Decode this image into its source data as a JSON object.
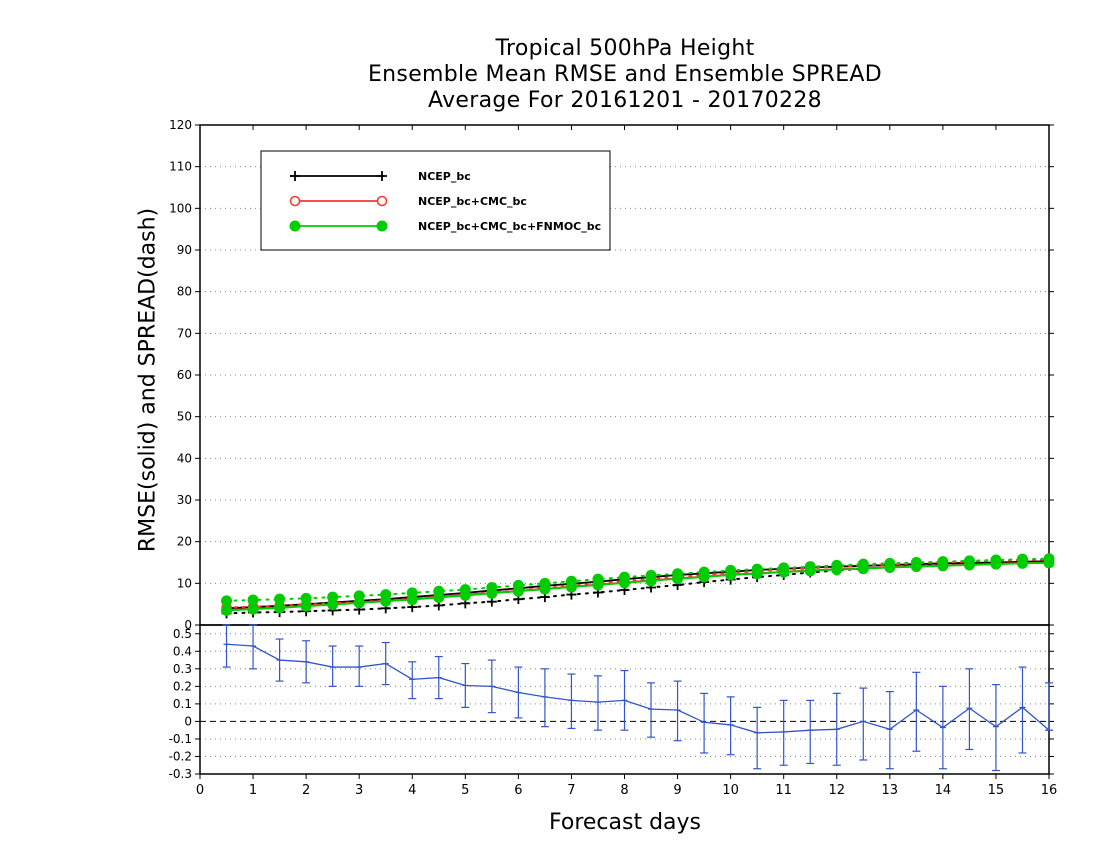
{
  "chart_data": {
    "type": "line",
    "title": [
      "Tropical 500hPa Height",
      "Ensemble Mean RMSE and Ensemble SPREAD",
      "Average For 20161201 - 20170228"
    ],
    "ylabel": "RMSE(solid) and SPREAD(dash)",
    "xlabel": "Forecast days",
    "x": [
      0.5,
      1,
      1.5,
      2,
      2.5,
      3,
      3.5,
      4,
      4.5,
      5,
      5.5,
      6,
      6.5,
      7,
      7.5,
      8,
      8.5,
      9,
      9.5,
      10,
      10.5,
      11,
      11.5,
      12,
      12.5,
      13,
      13.5,
      14,
      14.5,
      15,
      15.5,
      16
    ],
    "xlim": [
      0,
      16
    ],
    "xticks": [
      0,
      1,
      2,
      3,
      4,
      5,
      6,
      7,
      8,
      9,
      10,
      11,
      12,
      13,
      14,
      15,
      16
    ],
    "top_panel": {
      "ylim": [
        0,
        120
      ],
      "yticks": [
        0,
        10,
        20,
        30,
        40,
        50,
        60,
        70,
        80,
        90,
        100,
        110,
        120
      ],
      "grid": true,
      "legend_position": "top-left",
      "series": [
        {
          "name": "NCEP_bc",
          "color": "#000000",
          "marker": "plus",
          "rmse": [
            4.0,
            4.3,
            4.6,
            5.0,
            5.4,
            5.8,
            6.2,
            6.7,
            7.2,
            7.7,
            8.3,
            8.8,
            9.4,
            9.9,
            10.4,
            11.0,
            11.5,
            12.0,
            12.4,
            12.8,
            13.2,
            13.5,
            13.8,
            14.0,
            14.2,
            14.4,
            14.6,
            14.8,
            14.9,
            15.0,
            15.2,
            15.3
          ],
          "spread": [
            2.8,
            3.0,
            3.1,
            3.3,
            3.5,
            3.7,
            4.0,
            4.3,
            4.7,
            5.2,
            5.6,
            6.2,
            6.7,
            7.3,
            7.8,
            8.4,
            9.0,
            9.6,
            10.3,
            10.9,
            11.5,
            12.0,
            12.6,
            13.1,
            13.5,
            13.9,
            14.2,
            14.5,
            14.7,
            14.8,
            15.0,
            15.2
          ]
        },
        {
          "name": "NCEP_bc+CMC_bc",
          "color": "#ff3333",
          "marker": "open-circle",
          "rmse": [
            3.6,
            3.9,
            4.2,
            4.6,
            5.0,
            5.4,
            5.8,
            6.2,
            6.7,
            7.2,
            7.7,
            8.2,
            8.7,
            9.2,
            9.7,
            10.2,
            10.7,
            11.2,
            11.6,
            12.1,
            12.4,
            12.8,
            13.1,
            13.4,
            13.6,
            13.9,
            14.1,
            14.3,
            14.5,
            14.7,
            14.9,
            15.0
          ],
          "spread": [
            4.2,
            4.4,
            4.6,
            4.9,
            5.2,
            5.5,
            5.9,
            6.3,
            6.8,
            7.3,
            7.8,
            8.3,
            8.9,
            9.4,
            10.0,
            10.5,
            11.0,
            11.5,
            12.0,
            12.5,
            12.9,
            13.3,
            13.6,
            14.0,
            14.3,
            14.5,
            14.8,
            15.0,
            15.2,
            15.4,
            15.6,
            15.7
          ]
        },
        {
          "name": "NCEP_bc+CMC_bc+FNMOC_bc",
          "color": "#00cc00",
          "marker": "filled-circle",
          "rmse": [
            3.5,
            3.8,
            4.1,
            4.5,
            4.9,
            5.3,
            5.7,
            6.1,
            6.6,
            7.1,
            7.6,
            8.1,
            8.6,
            9.1,
            9.6,
            10.1,
            10.6,
            11.1,
            11.5,
            12.0,
            12.3,
            12.7,
            13.0,
            13.3,
            13.5,
            13.8,
            14.0,
            14.2,
            14.4,
            14.6,
            14.8,
            14.9
          ],
          "spread": [
            5.8,
            6.0,
            6.2,
            6.4,
            6.7,
            7.0,
            7.3,
            7.7,
            8.1,
            8.5,
            9.0,
            9.5,
            10.0,
            10.5,
            11.0,
            11.5,
            11.9,
            12.3,
            12.7,
            13.1,
            13.4,
            13.7,
            14.0,
            14.3,
            14.6,
            14.8,
            15.0,
            15.2,
            15.4,
            15.6,
            15.8,
            15.9
          ]
        }
      ]
    },
    "bottom_panel": {
      "ylim": [
        -0.3,
        0.55
      ],
      "yticks": [
        -0.3,
        -0.2,
        -0.1,
        0,
        0.1,
        0.2,
        0.3,
        0.4,
        0.5
      ],
      "ytick_labels": [
        "-0.3",
        "-0.2",
        "-0.1",
        "0",
        "0.1",
        "0.2",
        "0.3",
        "0.4",
        "0.5"
      ],
      "grid": true,
      "zero_line": "dashed",
      "series": [
        {
          "color": "#3355cc",
          "values": [
            0.44,
            0.43,
            0.35,
            0.34,
            0.31,
            0.31,
            0.33,
            0.24,
            0.25,
            0.205,
            0.2,
            0.165,
            0.14,
            0.12,
            0.11,
            0.12,
            0.07,
            0.065,
            -0.005,
            -0.02,
            -0.065,
            -0.06,
            -0.05,
            -0.045,
            0.0,
            -0.045,
            0.065,
            -0.035,
            0.075,
            -0.03,
            0.08,
            -0.05
          ],
          "lower": [
            0.31,
            0.3,
            0.23,
            0.22,
            0.2,
            0.2,
            0.21,
            0.13,
            0.13,
            0.08,
            0.05,
            0.02,
            -0.03,
            -0.04,
            -0.05,
            -0.05,
            -0.09,
            -0.11,
            -0.18,
            -0.19,
            -0.27,
            -0.25,
            -0.24,
            -0.25,
            -0.22,
            -0.27,
            -0.17,
            -0.27,
            -0.16,
            -0.28,
            -0.18,
            -0.05
          ],
          "upper": [
            0.55,
            0.55,
            0.47,
            0.46,
            0.43,
            0.43,
            0.45,
            0.34,
            0.37,
            0.33,
            0.35,
            0.31,
            0.3,
            0.27,
            0.26,
            0.29,
            0.22,
            0.23,
            0.16,
            0.14,
            0.08,
            0.12,
            0.12,
            0.16,
            0.19,
            0.17,
            0.28,
            0.2,
            0.3,
            0.21,
            0.31,
            0.22
          ]
        }
      ]
    }
  }
}
